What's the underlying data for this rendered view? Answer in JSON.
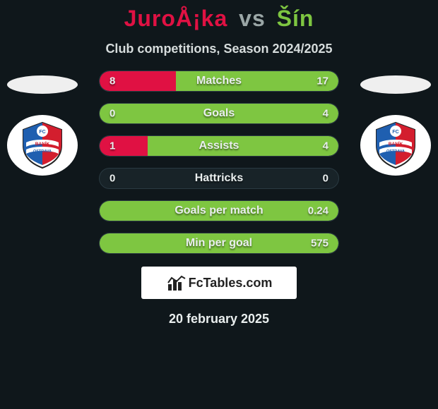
{
  "title": {
    "player1": "JuroÅ¡ka",
    "vs": "vs",
    "player2": "Šín"
  },
  "subtitle": "Club competitions, Season 2024/2025",
  "colors": {
    "player1_accent": "#e01143",
    "player2_accent": "#7ec641",
    "title_vs": "#9aa6a6",
    "subtitle": "#d6dcdc",
    "text": "#e9eeee",
    "row_bg": "#182328",
    "row_border": "#2a3a42",
    "background": "#0f171b",
    "club_shield_red": "#d31e2e",
    "club_shield_blue": "#1f5fb0",
    "club_shield_white": "#ffffff"
  },
  "rows": [
    {
      "label": "Matches",
      "left": "8",
      "right": "17",
      "left_pct": 32,
      "right_pct": 68
    },
    {
      "label": "Goals",
      "left": "0",
      "right": "4",
      "left_pct": 0,
      "right_pct": 100
    },
    {
      "label": "Assists",
      "left": "1",
      "right": "4",
      "left_pct": 20,
      "right_pct": 80
    },
    {
      "label": "Hattricks",
      "left": "0",
      "right": "0",
      "left_pct": 0,
      "right_pct": 0
    },
    {
      "label": "Goals per match",
      "left": "",
      "right": "0.24",
      "left_pct": 0,
      "right_pct": 100
    },
    {
      "label": "Min per goal",
      "left": "",
      "right": "575",
      "left_pct": 0,
      "right_pct": 100
    }
  ],
  "club": {
    "name_line1": "BANÍK",
    "name_line2": "OSTRAVA",
    "initials": "FC"
  },
  "brand": {
    "text": "FcTables.com"
  },
  "date": "20 february 2025"
}
